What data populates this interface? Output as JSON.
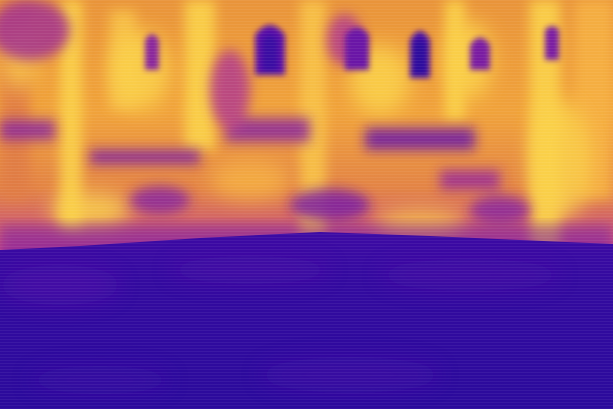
{
  "image": {
    "kind": "heatmap-visualization",
    "colormap": "plasma",
    "palette": {
      "low": "#2b0a9c",
      "low_mid": "#4a0aa6",
      "mid": "#7a1fa2",
      "mid_high": "#c24686",
      "high": "#f08a3c",
      "peak": "#fbd24a"
    },
    "regions": [
      {
        "name": "building-facade",
        "intensity": "high"
      },
      {
        "name": "arched-windows",
        "intensity": "low"
      },
      {
        "name": "ground-foreground",
        "intensity": "low"
      }
    ]
  }
}
